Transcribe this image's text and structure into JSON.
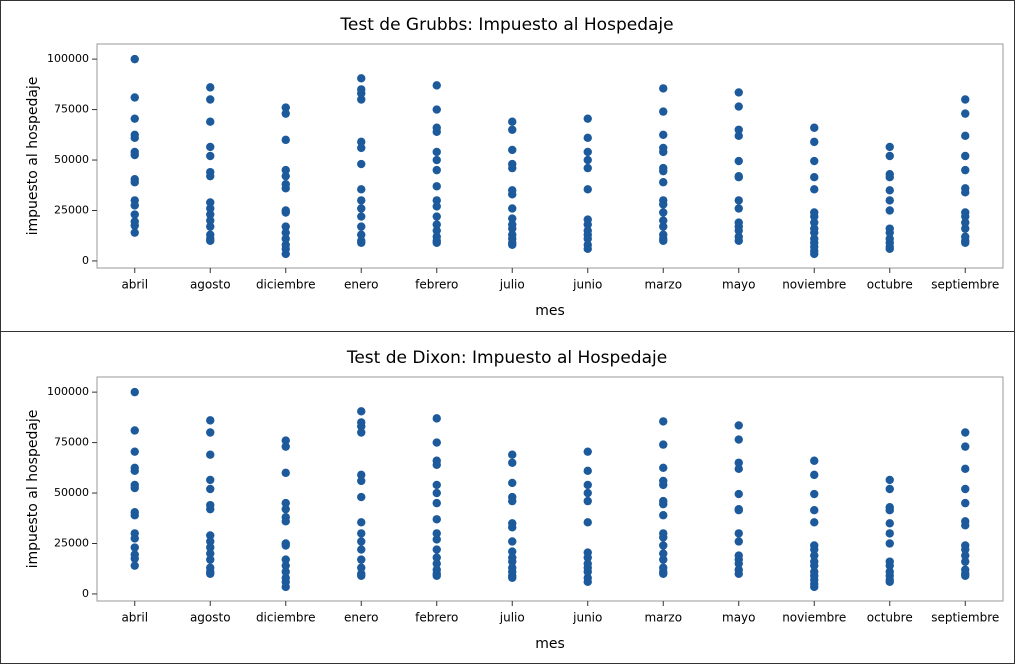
{
  "chart_data": [
    {
      "type": "scatter",
      "title": "Test de Grubbs: Impuesto al Hospedaje",
      "xlabel": "mes",
      "ylabel": "impuesto al hospedaje",
      "color": "#1c5a9c",
      "categories": [
        "abril",
        "agosto",
        "diciembre",
        "enero",
        "febrero",
        "julio",
        "junio",
        "marzo",
        "mayo",
        "noviembre",
        "octubre",
        "septiembre"
      ],
      "values": [
        [
          100000,
          81000,
          70500,
          62500,
          61000,
          54000,
          52500,
          40500,
          39000,
          30000,
          27500,
          23000,
          19500,
          17500,
          14000
        ],
        [
          86000,
          80000,
          69000,
          56500,
          52000,
          44000,
          42000,
          29000,
          26000,
          23000,
          20000,
          17000,
          13000,
          11000,
          10000
        ],
        [
          76000,
          73000,
          60000,
          45000,
          42000,
          38000,
          36000,
          25000,
          24000,
          17000,
          14000,
          11000,
          8000,
          6000,
          3500
        ],
        [
          90500,
          85000,
          83000,
          80000,
          59000,
          56000,
          48000,
          35500,
          30000,
          26000,
          22000,
          17000,
          13000,
          10000,
          9000
        ],
        [
          87000,
          75000,
          66000,
          64000,
          54000,
          50000,
          45000,
          37000,
          30000,
          27000,
          22000,
          18000,
          15000,
          12000,
          10000,
          9000
        ],
        [
          69000,
          65000,
          55000,
          48000,
          46000,
          35000,
          33000,
          26000,
          21000,
          18000,
          16000,
          13000,
          11000,
          9000,
          8000
        ],
        [
          70500,
          61000,
          54000,
          50000,
          46000,
          35500,
          20500,
          18000,
          15000,
          13000,
          11000,
          8000,
          6000
        ],
        [
          85500,
          74000,
          62500,
          56000,
          54000,
          46000,
          44500,
          39000,
          30000,
          28000,
          24000,
          20000,
          17000,
          13000,
          11000,
          10000
        ],
        [
          83500,
          76500,
          65000,
          62000,
          49500,
          42000,
          41500,
          30000,
          26000,
          19000,
          17000,
          15000,
          12000,
          10000
        ],
        [
          66000,
          59000,
          49500,
          41500,
          35500,
          24000,
          22000,
          19000,
          16000,
          14000,
          11000,
          9000,
          7000,
          5000,
          3500
        ],
        [
          56500,
          52000,
          43000,
          41500,
          35000,
          30000,
          25000,
          16000,
          14000,
          11000,
          9000,
          7000,
          6000
        ],
        [
          80000,
          73000,
          62000,
          52000,
          45000,
          36000,
          34000,
          24000,
          22000,
          19000,
          16000,
          12000,
          10000,
          9000
        ]
      ],
      "ylim": [
        -3500,
        107500
      ],
      "yticks": [
        0,
        25000,
        50000,
        75000,
        100000
      ]
    },
    {
      "type": "scatter",
      "title": "Test de Dixon: Impuesto al Hospedaje",
      "xlabel": "mes",
      "ylabel": "impuesto al hospedaje",
      "color": "#1c5a9c",
      "categories": [
        "abril",
        "agosto",
        "diciembre",
        "enero",
        "febrero",
        "julio",
        "junio",
        "marzo",
        "mayo",
        "noviembre",
        "octubre",
        "septiembre"
      ],
      "values": [
        [
          100000,
          81000,
          70500,
          62500,
          61000,
          54000,
          52500,
          40500,
          39000,
          30000,
          27500,
          23000,
          19500,
          17500,
          14000
        ],
        [
          86000,
          80000,
          69000,
          56500,
          52000,
          44000,
          42000,
          29000,
          26000,
          23000,
          20000,
          17000,
          13000,
          11000,
          10000
        ],
        [
          76000,
          73000,
          60000,
          45000,
          42000,
          38000,
          36000,
          25000,
          24000,
          17000,
          14000,
          11000,
          8000,
          6000,
          3500
        ],
        [
          90500,
          85000,
          83000,
          80000,
          59000,
          56000,
          48000,
          35500,
          30000,
          26000,
          22000,
          17000,
          13000,
          10000,
          9000
        ],
        [
          87000,
          75000,
          66000,
          64000,
          54000,
          50000,
          45000,
          37000,
          30000,
          27000,
          22000,
          18000,
          15000,
          12000,
          10000,
          9000
        ],
        [
          69000,
          65000,
          55000,
          48000,
          46000,
          35000,
          33000,
          26000,
          21000,
          18000,
          16000,
          13000,
          11000,
          9000,
          8000
        ],
        [
          70500,
          61000,
          54000,
          50000,
          46000,
          35500,
          20500,
          18000,
          15000,
          13000,
          11000,
          8000,
          6000
        ],
        [
          85500,
          74000,
          62500,
          56000,
          54000,
          46000,
          44500,
          39000,
          30000,
          28000,
          24000,
          20000,
          17000,
          13000,
          11000,
          10000
        ],
        [
          83500,
          76500,
          65000,
          62000,
          49500,
          42000,
          41500,
          30000,
          26000,
          19000,
          17000,
          15000,
          12000,
          10000
        ],
        [
          66000,
          59000,
          49500,
          41500,
          35500,
          24000,
          22000,
          19000,
          16000,
          14000,
          11000,
          9000,
          7000,
          5000,
          3500
        ],
        [
          56500,
          52000,
          43000,
          41500,
          35000,
          30000,
          25000,
          16000,
          14000,
          11000,
          9000,
          7000,
          6000
        ],
        [
          80000,
          73000,
          62000,
          52000,
          45000,
          36000,
          34000,
          24000,
          22000,
          19000,
          16000,
          12000,
          10000,
          9000
        ]
      ],
      "ylim": [
        -3500,
        107500
      ],
      "yticks": [
        0,
        25000,
        50000,
        75000,
        100000
      ]
    }
  ]
}
